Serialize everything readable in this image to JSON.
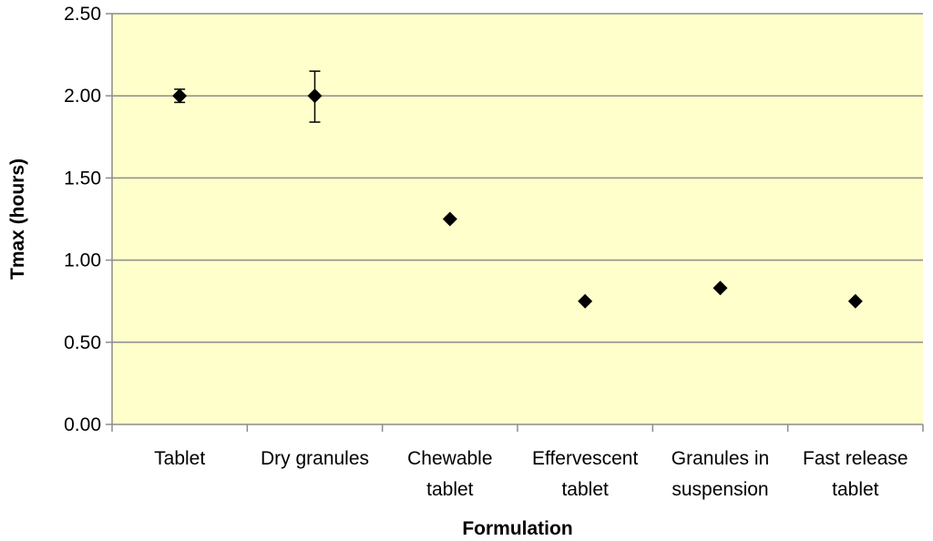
{
  "chart_data": {
    "type": "scatter",
    "title": "",
    "xlabel": "Formulation",
    "ylabel": "Tmax (hours)",
    "ylim": [
      0,
      2.5
    ],
    "yticks": [
      "0.00",
      "0.50",
      "1.00",
      "1.50",
      "2.00",
      "2.50"
    ],
    "grid": true,
    "legend": "none",
    "categories": [
      [
        "Tablet"
      ],
      [
        "Dry granules"
      ],
      [
        "Chewable",
        "tablet"
      ],
      [
        "Effervescent",
        "tablet"
      ],
      [
        "Granules in",
        "suspension"
      ],
      [
        "Fast release",
        "tablet"
      ]
    ],
    "series": [
      {
        "values": [
          2.0,
          2.0,
          1.25,
          0.75,
          0.83,
          0.75
        ],
        "error_low": [
          1.96,
          1.84,
          null,
          null,
          null,
          null
        ],
        "error_high": [
          2.04,
          2.15,
          null,
          null,
          null,
          null
        ]
      }
    ],
    "colors": {
      "plot_background": "#FFFFCC",
      "gridline": "#8C8C8C",
      "marker": "#000000"
    }
  }
}
